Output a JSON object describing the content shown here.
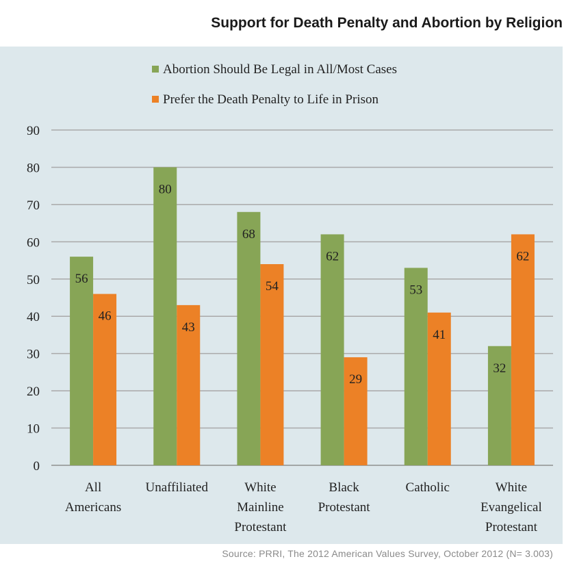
{
  "title": "Support for Death Penalty and Abortion by Religion",
  "source": "Source: PRRI, The 2012 American Values Survey, October 2012 (N= 3.003)",
  "chart_data": {
    "type": "bar",
    "ylim": [
      0,
      90
    ],
    "yticks": [
      0,
      10,
      20,
      30,
      40,
      50,
      60,
      70,
      80,
      90
    ],
    "grid": true,
    "legend_position": "top",
    "categories": [
      [
        "All",
        "Americans"
      ],
      [
        "Unaffiliated"
      ],
      [
        "White",
        "Mainline",
        "Protestant"
      ],
      [
        "Black",
        "Protestant"
      ],
      [
        "Catholic"
      ],
      [
        "White",
        "Evangelical",
        "Protestant"
      ]
    ],
    "series": [
      {
        "name": "Abortion Should Be Legal in All/Most Cases",
        "color": "#87a556",
        "values": [
          56,
          80,
          68,
          62,
          53,
          32
        ]
      },
      {
        "name": "Prefer the Death Penalty to Life in Prison",
        "color": "#ec8126",
        "values": [
          46,
          43,
          54,
          29,
          41,
          62
        ]
      }
    ]
  }
}
